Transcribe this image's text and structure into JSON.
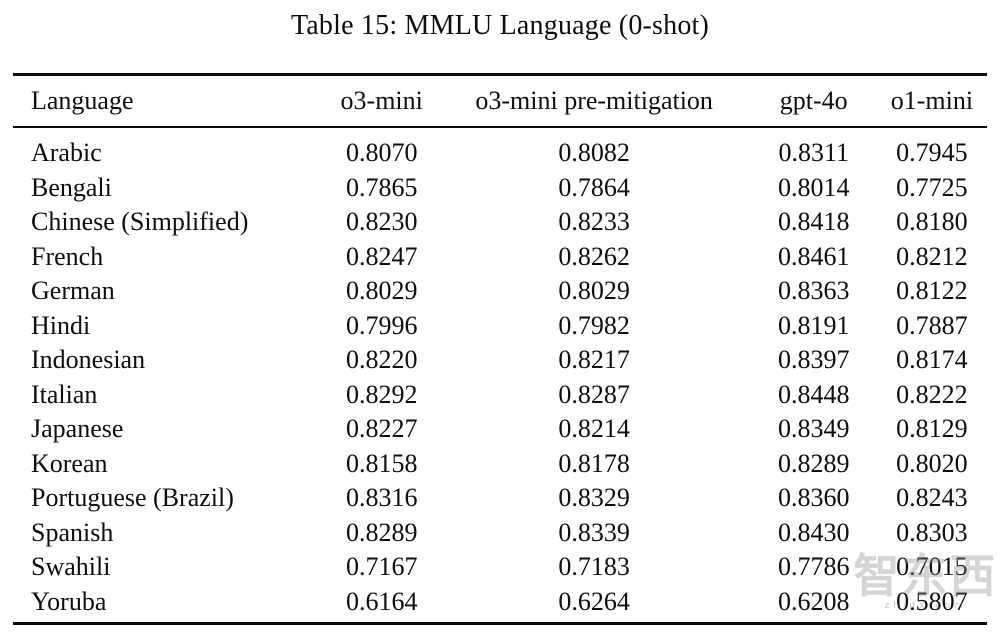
{
  "title": "Table 15: MMLU Language (0-shot)",
  "table": {
    "columns": [
      "Language",
      "o3-mini",
      "o3-mini pre-mitigation",
      "gpt-4o",
      "o1-mini"
    ],
    "rows": [
      [
        "Arabic",
        "0.8070",
        "0.8082",
        "0.8311",
        "0.7945"
      ],
      [
        "Bengali",
        "0.7865",
        "0.7864",
        "0.8014",
        "0.7725"
      ],
      [
        "Chinese (Simplified)",
        "0.8230",
        "0.8233",
        "0.8418",
        "0.8180"
      ],
      [
        "French",
        "0.8247",
        "0.8262",
        "0.8461",
        "0.8212"
      ],
      [
        "German",
        "0.8029",
        "0.8029",
        "0.8363",
        "0.8122"
      ],
      [
        "Hindi",
        "0.7996",
        "0.7982",
        "0.8191",
        "0.7887"
      ],
      [
        "Indonesian",
        "0.8220",
        "0.8217",
        "0.8397",
        "0.8174"
      ],
      [
        "Italian",
        "0.8292",
        "0.8287",
        "0.8448",
        "0.8222"
      ],
      [
        "Japanese",
        "0.8227",
        "0.8214",
        "0.8349",
        "0.8129"
      ],
      [
        "Korean",
        "0.8158",
        "0.8178",
        "0.8289",
        "0.8020"
      ],
      [
        "Portuguese (Brazil)",
        "0.8316",
        "0.8329",
        "0.8360",
        "0.8243"
      ],
      [
        "Spanish",
        "0.8289",
        "0.8339",
        "0.8430",
        "0.8303"
      ],
      [
        "Swahili",
        "0.7167",
        "0.7183",
        "0.7786",
        "0.7015"
      ],
      [
        "Yoruba",
        "0.6164",
        "0.6264",
        "0.6208",
        "0.5807"
      ]
    ]
  },
  "watermark": {
    "text": "智东西",
    "subtext": "zhidx.com"
  },
  "colors": {
    "background": "#ffffff",
    "text": "#0e0e0e",
    "rule": "#0e0e0e",
    "watermark": "#969696"
  }
}
